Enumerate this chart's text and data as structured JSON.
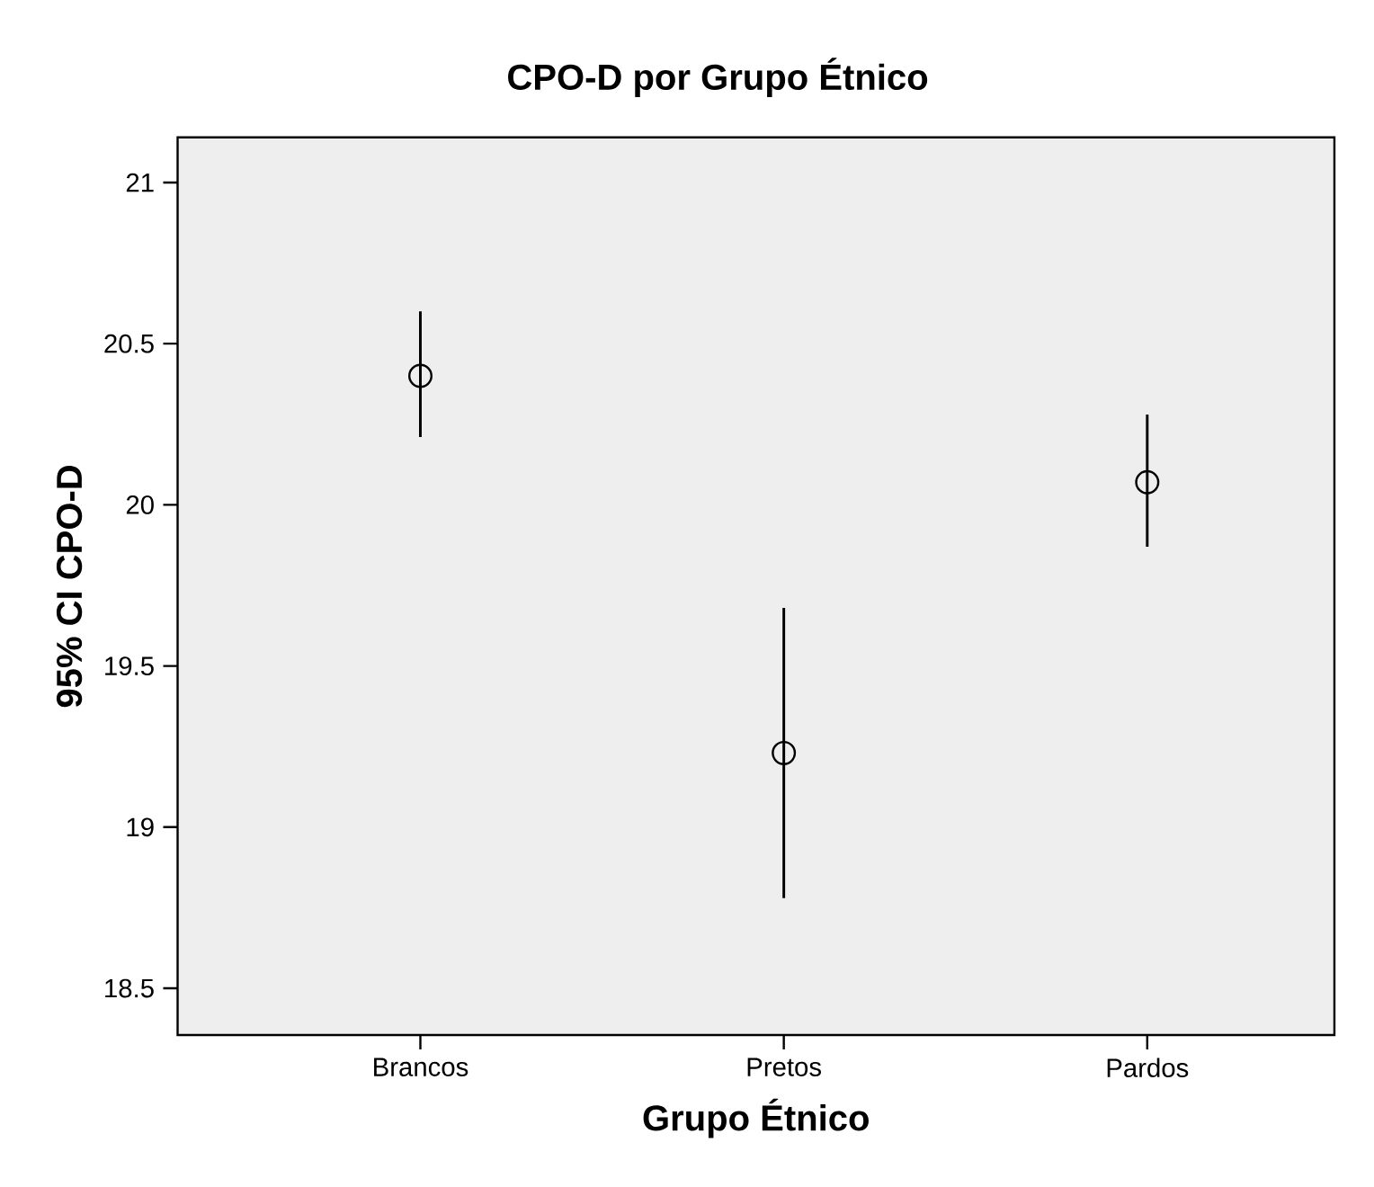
{
  "chart_data": {
    "type": "scatter",
    "title": "CPO-D por Grupo Étnico",
    "xlabel": "Grupo Étnico",
    "ylabel": "95% CI CPO-D",
    "categories": [
      "Brancos",
      "Pretos",
      "Pardos"
    ],
    "values": [
      20.4,
      19.23,
      20.07
    ],
    "errors": [
      [
        20.21,
        20.6
      ],
      [
        18.78,
        19.68
      ],
      [
        19.87,
        20.28
      ]
    ],
    "color": "#000000",
    "marker": "circle",
    "ylim": [
      18.355,
      21.14
    ],
    "yticks": [
      18.5,
      19,
      19.5,
      20,
      20.5,
      21
    ],
    "grid": false
  }
}
